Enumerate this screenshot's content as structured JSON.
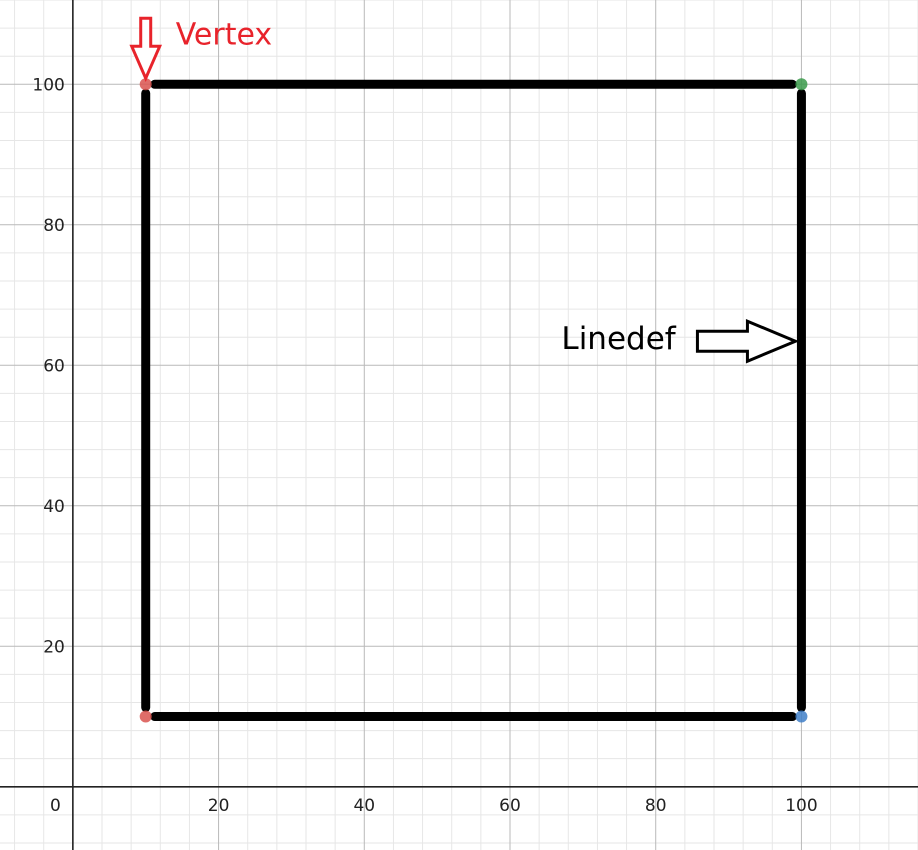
{
  "chart_data": {
    "type": "scatter",
    "x_ticks": [
      "0",
      "20",
      "40",
      "60",
      "80",
      "100"
    ],
    "y_ticks": [
      "20",
      "40",
      "60",
      "80",
      "100"
    ],
    "xlim": [
      -10,
      116
    ],
    "ylim": [
      -9,
      112
    ],
    "minor_step": 4,
    "major_step": 20,
    "grid": true,
    "vertices": [
      {
        "x": 10,
        "y": 100,
        "color": "#d9534f"
      },
      {
        "x": 100,
        "y": 100,
        "color": "#3a9a4a"
      },
      {
        "x": 100,
        "y": 10,
        "color": "#3f7fc8"
      },
      {
        "x": 10,
        "y": 10,
        "color": "#d9534f"
      }
    ],
    "linedefs": [
      {
        "from": 0,
        "to": 1
      },
      {
        "from": 1,
        "to": 2
      },
      {
        "from": 2,
        "to": 3
      },
      {
        "from": 3,
        "to": 0
      }
    ],
    "annotations": {
      "vertex": {
        "label": "Vertex",
        "color": "#e8232b",
        "target_vertex": 0
      },
      "linedef": {
        "label": "Linedef",
        "color": "#000000",
        "target_point": {
          "x": 100,
          "y": 63
        }
      }
    }
  }
}
